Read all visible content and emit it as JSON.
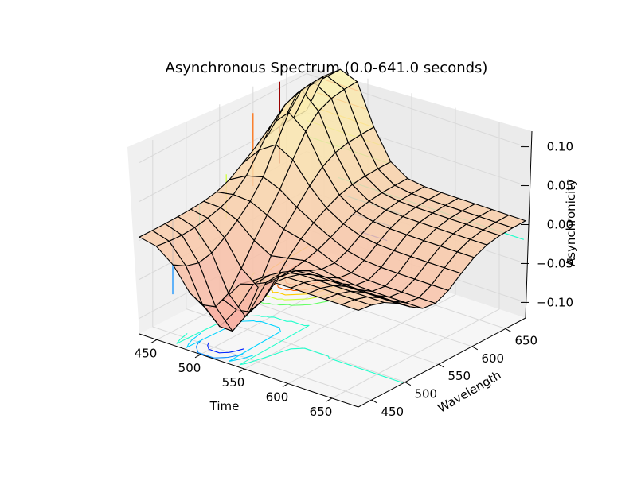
{
  "chart_data": {
    "type": "surface3d",
    "title": "Asynchronous Spectrum (0.0-641.0 seconds)",
    "xlabel": "Time",
    "ylabel": "Wavelength",
    "zlabel": "Asynchronicity",
    "xlim": [
      430,
      680
    ],
    "ylim": [
      430,
      680
    ],
    "zlim": [
      -0.12,
      0.12
    ],
    "x_ticks": [
      "450",
      "500",
      "550",
      "600",
      "650"
    ],
    "y_ticks": [
      "450",
      "500",
      "550",
      "600",
      "650"
    ],
    "z_ticks": [
      "−0.10",
      "−0.05",
      "0.00",
      "0.05",
      "0.10"
    ],
    "grid": true,
    "colormap": "autumn-to-yellow surface, jet contours on walls and floor",
    "surface_wireframe_color": "#000000",
    "features": [
      {
        "name": "negative trough",
        "x": 500,
        "y": 470,
        "z": -0.09
      },
      {
        "name": "positive ridge",
        "x": 470,
        "y": 620,
        "z": 0.1
      },
      {
        "name": "plateau far edge",
        "x": 650,
        "y": 650,
        "z": 0.0
      }
    ]
  },
  "colors": {
    "pane_left": "#f0f0f0",
    "pane_right": "#ebebeb",
    "pane_floor": "#f5f5f5",
    "surface_low": "#f7a7a3",
    "surface_high": "#fbf3b0",
    "grid": "#d9d9d9"
  }
}
